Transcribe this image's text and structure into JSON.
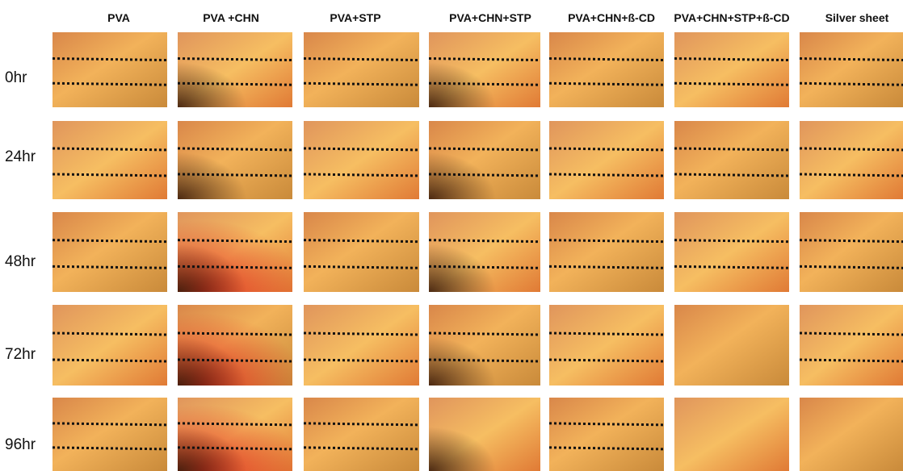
{
  "figure": {
    "columns": [
      "PVA",
      "PVA +CHN",
      "PVA+STP",
      "PVA+CHN+STP",
      "PVA+CHN+ß-CD",
      "PVA+CHN+STP+ß-CD",
      "Silver sheet"
    ],
    "rows": [
      "0hr",
      "24hr",
      "48hr",
      "72hr",
      "96hr"
    ]
  }
}
